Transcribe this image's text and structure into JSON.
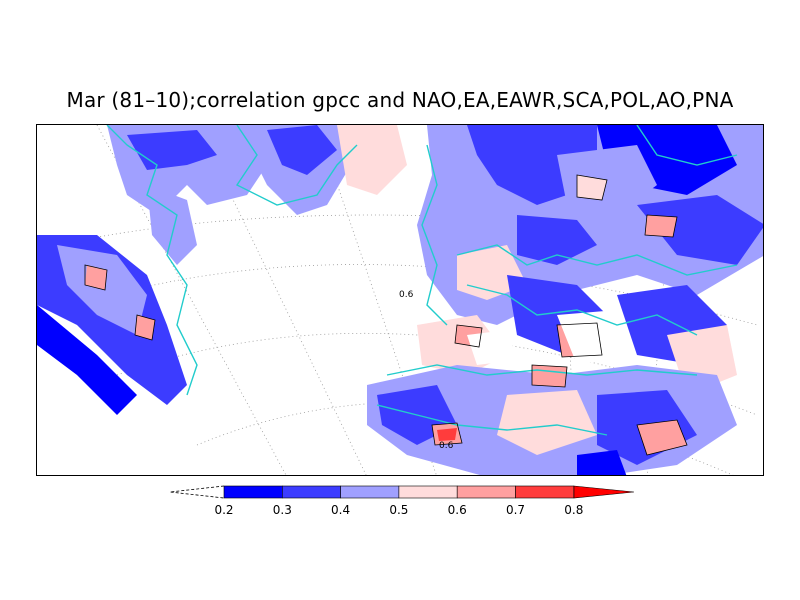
{
  "title": "Mar (81–10);correlation gpcc and NAO,EA,EAWR,SCA,POL,AO,PNA",
  "map": {
    "projection": "conic",
    "region": "North Atlantic, Europe, North Africa",
    "contour_labels": [
      "0.6",
      "0.6"
    ],
    "coastline_color": "#22cccc",
    "graticule": "dotted"
  },
  "colorbar": {
    "ticks": [
      "0.2",
      "0.3",
      "0.4",
      "0.5",
      "0.6",
      "0.7",
      "0.8"
    ],
    "colors": [
      "#0000ff",
      "#3c3cff",
      "#a0a0ff",
      "#ffdcdc",
      "#ffa0a0",
      "#ff3c3c",
      "#ff0000"
    ],
    "low_extension": "dashed-open",
    "high_extension": "filled-arrow"
  }
}
